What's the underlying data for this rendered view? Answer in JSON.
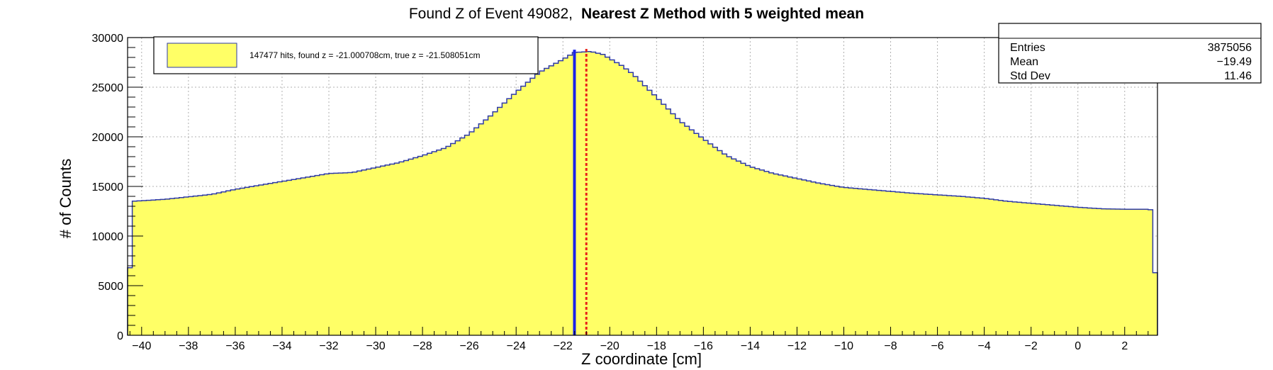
{
  "chart_data": {
    "type": "histogram",
    "title_left": "Found Z of Event 49082,",
    "title_right": "Nearest Z Method with 5 weighted mean",
    "xlabel": "Z coordinate [cm]",
    "ylabel": "# of Counts",
    "xlim": [
      -40.6,
      3.4
    ],
    "ylim": [
      0,
      30000
    ],
    "xticks": [
      -40,
      -38,
      -36,
      -34,
      -32,
      -30,
      -28,
      -26,
      -24,
      -22,
      -20,
      -18,
      -16,
      -14,
      -12,
      -10,
      -8,
      -6,
      -4,
      -2,
      0,
      2
    ],
    "yticks": [
      0,
      5000,
      10000,
      15000,
      20000,
      25000,
      30000
    ],
    "grid": true,
    "fill_color": "#ffff66",
    "line_color": "#2e3aa6",
    "anchors": [
      [
        -40.6,
        6800
      ],
      [
        -40.4,
        13500
      ],
      [
        -39.0,
        13700
      ],
      [
        -37.0,
        14200
      ],
      [
        -36.0,
        14700
      ],
      [
        -35.0,
        15100
      ],
      [
        -34.0,
        15500
      ],
      [
        -33.0,
        15900
      ],
      [
        -32.0,
        16300
      ],
      [
        -31.0,
        16400
      ],
      [
        -30.0,
        16900
      ],
      [
        -29.0,
        17400
      ],
      [
        -28.0,
        18100
      ],
      [
        -27.0,
        18900
      ],
      [
        -26.0,
        20300
      ],
      [
        -25.0,
        22300
      ],
      [
        -24.0,
        24500
      ],
      [
        -23.0,
        26500
      ],
      [
        -22.0,
        27800
      ],
      [
        -21.5,
        28500
      ],
      [
        -20.8,
        28600
      ],
      [
        -20.3,
        28300
      ],
      [
        -19.5,
        27200
      ],
      [
        -19.0,
        26300
      ],
      [
        -18.0,
        24000
      ],
      [
        -17.0,
        21600
      ],
      [
        -16.0,
        19800
      ],
      [
        -15.0,
        18100
      ],
      [
        -14.0,
        17000
      ],
      [
        -13.0,
        16300
      ],
      [
        -12.0,
        15800
      ],
      [
        -11.0,
        15300
      ],
      [
        -10.0,
        14900
      ],
      [
        -9.0,
        14700
      ],
      [
        -8.0,
        14500
      ],
      [
        -7.0,
        14300
      ],
      [
        -6.0,
        14150
      ],
      [
        -5.0,
        14000
      ],
      [
        -4.0,
        13800
      ],
      [
        -3.0,
        13500
      ],
      [
        -2.0,
        13300
      ],
      [
        -1.0,
        13100
      ],
      [
        0.0,
        12900
      ],
      [
        1.0,
        12750
      ],
      [
        2.0,
        12700
      ],
      [
        3.0,
        12700
      ],
      [
        3.2,
        12600
      ],
      [
        3.4,
        6300
      ]
    ],
    "found_z": -21.000708,
    "true_z": -21.508051,
    "found_line_color": "#e8221a",
    "true_line_color": "#1a22e8",
    "legend": {
      "text": "147477 hits, found z = -21.000708cm, true z = -21.508051cm",
      "swatch_color": "#ffff66"
    },
    "stats": {
      "header": "",
      "rows": [
        {
          "label": "Entries",
          "value": "3875056"
        },
        {
          "label": "Mean",
          "value": "−19.49"
        },
        {
          "label": "Std Dev",
          "value": "11.46"
        }
      ]
    }
  }
}
